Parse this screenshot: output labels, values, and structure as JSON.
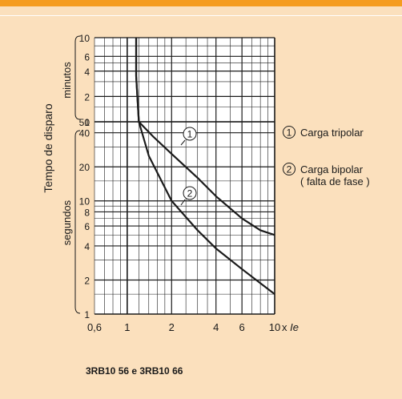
{
  "chart_data": {
    "type": "line",
    "x_scale": "log",
    "y_scale": "log",
    "xlim": [
      0.6,
      10
    ],
    "x_ticks": [
      0.6,
      1,
      2,
      4,
      6,
      10
    ],
    "x_tick_labels": [
      "0,6",
      "1",
      "2",
      "4",
      "6",
      "10"
    ],
    "x_unit_label": "x",
    "x_unit_symbol": "Ie",
    "ylabel": "Tempo de disparo",
    "y_upper": {
      "label": "minutos",
      "range": [
        1,
        10
      ],
      "ticks": [
        1,
        2,
        4,
        6,
        10
      ],
      "tick_labels": [
        "1",
        "2",
        "4",
        "6",
        "10"
      ]
    },
    "y_lower": {
      "label": "segundos",
      "range": [
        1,
        50
      ],
      "ticks": [
        1,
        2,
        4,
        6,
        8,
        10,
        20,
        40,
        50
      ],
      "tick_labels": [
        "1",
        "2",
        "4",
        "6",
        "8",
        "10",
        "20",
        "40",
        "50"
      ]
    },
    "grid": true,
    "series": [
      {
        "id": "1",
        "name": "Carga tripolar",
        "marker_label": "1",
        "points": [
          {
            "x": 1.15,
            "y_minutes": 10
          },
          {
            "x": 1.15,
            "y_minutes": 3.5
          },
          {
            "x": 1.2,
            "y_seconds": 50
          },
          {
            "x": 1.5,
            "y_seconds": 37
          },
          {
            "x": 2,
            "y_seconds": 26
          },
          {
            "x": 3,
            "y_seconds": 16
          },
          {
            "x": 4,
            "y_seconds": 11
          },
          {
            "x": 6,
            "y_seconds": 7
          },
          {
            "x": 8,
            "y_seconds": 5.5
          },
          {
            "x": 10,
            "y_seconds": 5
          }
        ]
      },
      {
        "id": "2",
        "name": "Carga bipolar\n( falta de fase )",
        "marker_label": "2",
        "points": [
          {
            "x": 1.15,
            "y_minutes": 10
          },
          {
            "x": 1.15,
            "y_minutes": 3.5
          },
          {
            "x": 1.2,
            "y_seconds": 50
          },
          {
            "x": 1.4,
            "y_seconds": 25
          },
          {
            "x": 2,
            "y_seconds": 10
          },
          {
            "x": 3,
            "y_seconds": 5.5
          },
          {
            "x": 4,
            "y_seconds": 3.8
          },
          {
            "x": 6,
            "y_seconds": 2.5
          },
          {
            "x": 10,
            "y_seconds": 1.5
          }
        ]
      }
    ]
  },
  "legend": {
    "items": [
      {
        "marker": "1",
        "line1": "Carga tripolar",
        "line2": ""
      },
      {
        "marker": "2",
        "line1": "Carga bipolar",
        "line2": "( falta de fase )"
      }
    ]
  },
  "caption": "3RB10 56 e 3RB10 66"
}
